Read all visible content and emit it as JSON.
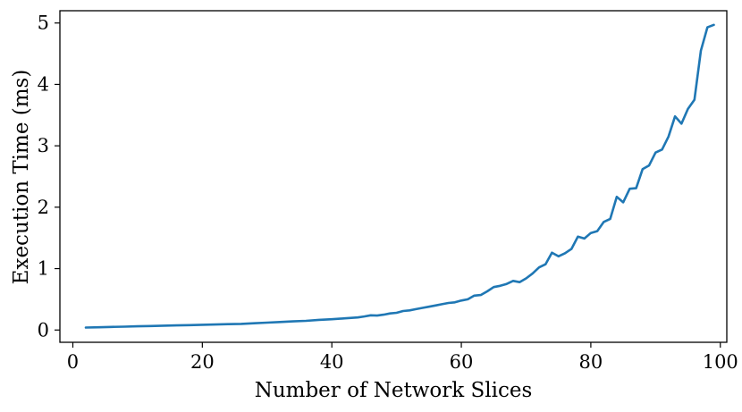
{
  "chart_data": {
    "type": "line",
    "title": "",
    "xlabel": "Number of Network Slices",
    "ylabel": "Execution Time (ms)",
    "xlim": [
      -2,
      101
    ],
    "ylim": [
      -0.2,
      5.2
    ],
    "xticks": [
      0,
      20,
      40,
      60,
      80,
      100
    ],
    "yticks": [
      0,
      1,
      2,
      3,
      4,
      5
    ],
    "grid": false,
    "legend": "none",
    "series": [
      {
        "color": "#1f77b4",
        "x": [
          2,
          4,
          6,
          8,
          10,
          12,
          14,
          16,
          18,
          20,
          22,
          24,
          26,
          28,
          30,
          32,
          34,
          36,
          38,
          40,
          42,
          44,
          45,
          46,
          47,
          48,
          49,
          50,
          51,
          52,
          53,
          54,
          55,
          56,
          57,
          58,
          59,
          60,
          61,
          62,
          63,
          64,
          65,
          66,
          67,
          68,
          69,
          70,
          71,
          72,
          73,
          74,
          75,
          76,
          77,
          78,
          79,
          80,
          81,
          82,
          83,
          84,
          85,
          86,
          87,
          88,
          89,
          90,
          91,
          92,
          93,
          94,
          95,
          96,
          97,
          98,
          99
        ],
        "y": [
          0.04,
          0.045,
          0.05,
          0.055,
          0.06,
          0.065,
          0.07,
          0.075,
          0.08,
          0.085,
          0.09,
          0.095,
          0.1,
          0.11,
          0.12,
          0.13,
          0.14,
          0.15,
          0.165,
          0.175,
          0.19,
          0.205,
          0.22,
          0.24,
          0.235,
          0.25,
          0.27,
          0.28,
          0.31,
          0.32,
          0.34,
          0.36,
          0.38,
          0.4,
          0.42,
          0.44,
          0.45,
          0.48,
          0.5,
          0.56,
          0.57,
          0.63,
          0.7,
          0.72,
          0.75,
          0.8,
          0.78,
          0.84,
          0.92,
          1.02,
          1.07,
          1.26,
          1.2,
          1.25,
          1.32,
          1.52,
          1.49,
          1.58,
          1.61,
          1.76,
          1.81,
          2.17,
          2.08,
          2.3,
          2.31,
          2.62,
          2.68,
          2.89,
          2.94,
          3.15,
          3.48,
          3.36,
          3.6,
          3.75,
          4.55,
          4.93,
          4.97
        ]
      }
    ]
  }
}
